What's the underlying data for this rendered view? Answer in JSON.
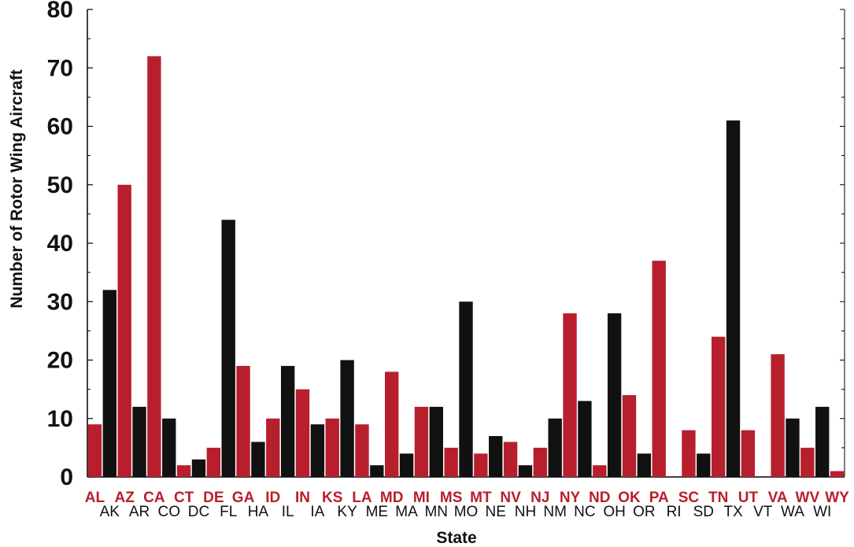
{
  "colors": {
    "red": "#b81f2c",
    "black": "#111111",
    "axis": "#000000"
  },
  "chart_data": {
    "type": "bar",
    "xlabel": "State",
    "ylabel": "Number of Rotor Wing Aircraft",
    "ylim": [
      0,
      80
    ],
    "yticks": [
      0,
      10,
      20,
      30,
      40,
      50,
      60,
      70,
      80
    ],
    "grid": false,
    "legend": "none",
    "categories": [
      "AL",
      "AK",
      "AZ",
      "AR",
      "CA",
      "CO",
      "CT",
      "DC",
      "DE",
      "FL",
      "GA",
      "HA",
      "ID",
      "IL",
      "IN",
      "IA",
      "KS",
      "KY",
      "LA",
      "ME",
      "MD",
      "MA",
      "MI",
      "MN",
      "MS",
      "MO",
      "MT",
      "NE",
      "NV",
      "NH",
      "NJ",
      "NM",
      "NY",
      "NC",
      "ND",
      "OH",
      "OK",
      "OR",
      "PA",
      "RI",
      "SC",
      "SD",
      "TN",
      "TX",
      "UT",
      "VT",
      "VA",
      "WA",
      "WV",
      "WI",
      "WY"
    ],
    "values": [
      9,
      32,
      50,
      12,
      72,
      10,
      2,
      3,
      5,
      44,
      19,
      6,
      10,
      19,
      15,
      9,
      10,
      20,
      9,
      2,
      18,
      4,
      12,
      12,
      5,
      30,
      4,
      7,
      6,
      2,
      5,
      10,
      28,
      13,
      2,
      28,
      14,
      4,
      37,
      0,
      8,
      4,
      24,
      61,
      8,
      0,
      21,
      10,
      5,
      12,
      1
    ],
    "bar_colors": [
      "red",
      "black",
      "red",
      "black",
      "red",
      "black",
      "red",
      "black",
      "red",
      "black",
      "red",
      "black",
      "red",
      "black",
      "red",
      "black",
      "red",
      "black",
      "red",
      "black",
      "red",
      "black",
      "red",
      "black",
      "red",
      "black",
      "red",
      "black",
      "red",
      "black",
      "red",
      "black",
      "red",
      "black",
      "red",
      "black",
      "red",
      "black",
      "red",
      "black",
      "red",
      "black",
      "red",
      "black",
      "red",
      "black",
      "red",
      "black",
      "red",
      "black",
      "red"
    ]
  }
}
